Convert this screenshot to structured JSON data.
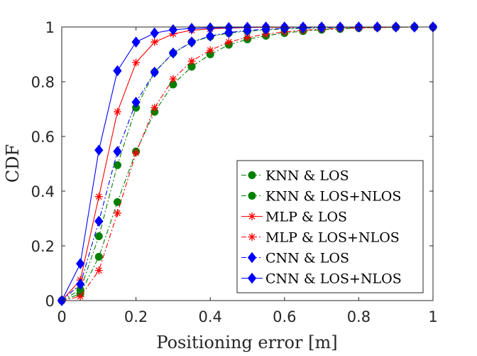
{
  "chart_data": {
    "type": "line",
    "title": "",
    "xlabel": "Positioning error [m]",
    "ylabel": "CDF",
    "xlim": [
      0,
      1
    ],
    "ylim": [
      0,
      1
    ],
    "xticks": [
      0,
      0.2,
      0.4,
      0.6,
      0.8,
      1
    ],
    "yticks": [
      0,
      0.2,
      0.4,
      0.6,
      0.8,
      1
    ],
    "xtick_labels": [
      "0",
      "0.2",
      "0.4",
      "0.6",
      "0.8",
      "1"
    ],
    "ytick_labels": [
      "0",
      "0.2",
      "0.4",
      "0.6",
      "0.8",
      "1"
    ],
    "grid": false,
    "legend_position": "bottom-right",
    "x": [
      0,
      0.05,
      0.1,
      0.15,
      0.2,
      0.25,
      0.3,
      0.35,
      0.4,
      0.45,
      0.5,
      0.55,
      0.6,
      0.65,
      0.7,
      0.75,
      0.8,
      0.85,
      0.9,
      0.95,
      1.0
    ],
    "series": [
      {
        "name": "KNN & LOS",
        "color": "#008000",
        "marker": "circle",
        "linestyle": "dashdot",
        "values": [
          0,
          0.04,
          0.235,
          0.495,
          0.705,
          0.835,
          0.905,
          0.945,
          0.965,
          0.978,
          0.985,
          0.99,
          0.993,
          0.995,
          0.997,
          0.998,
          0.999,
          0.999,
          1.0,
          1.0,
          1.0
        ]
      },
      {
        "name": "KNN & LOS+NLOS",
        "color": "#008000",
        "marker": "circle",
        "linestyle": "dashdot",
        "values": [
          0,
          0.025,
          0.16,
          0.36,
          0.545,
          0.69,
          0.79,
          0.855,
          0.9,
          0.935,
          0.955,
          0.968,
          0.978,
          0.985,
          0.99,
          0.993,
          0.996,
          0.998,
          0.999,
          1.0,
          1.0
        ]
      },
      {
        "name": "MLP & LOS",
        "color": "#ff0000",
        "marker": "star",
        "linestyle": "solid",
        "values": [
          0,
          0.075,
          0.38,
          0.69,
          0.87,
          0.945,
          0.975,
          0.988,
          0.993,
          0.996,
          0.998,
          0.999,
          0.999,
          1.0,
          1.0,
          1.0,
          1.0,
          1.0,
          1.0,
          1.0,
          1.0
        ]
      },
      {
        "name": "MLP & LOS+NLOS",
        "color": "#ff0000",
        "marker": "star",
        "linestyle": "dashdot",
        "values": [
          0,
          0.015,
          0.11,
          0.32,
          0.54,
          0.705,
          0.81,
          0.875,
          0.915,
          0.945,
          0.962,
          0.974,
          0.982,
          0.988,
          0.992,
          0.995,
          0.997,
          0.998,
          0.999,
          1.0,
          1.0
        ]
      },
      {
        "name": "CNN & LOS",
        "color": "#0000ff",
        "marker": "diamond",
        "linestyle": "dashdot",
        "values": [
          0,
          0.06,
          0.29,
          0.545,
          0.725,
          0.835,
          0.905,
          0.945,
          0.967,
          0.98,
          0.987,
          0.992,
          0.995,
          0.997,
          0.998,
          0.999,
          1.0,
          1.0,
          1.0,
          1.0,
          1.0
        ]
      },
      {
        "name": "CNN & LOS+NLOS",
        "color": "#0000ff",
        "marker": "diamond",
        "linestyle": "solid",
        "values": [
          0,
          0.135,
          0.55,
          0.84,
          0.945,
          0.978,
          0.99,
          0.995,
          0.997,
          0.998,
          0.999,
          1.0,
          1.0,
          1.0,
          1.0,
          1.0,
          1.0,
          1.0,
          1.0,
          1.0,
          1.0
        ]
      }
    ]
  }
}
